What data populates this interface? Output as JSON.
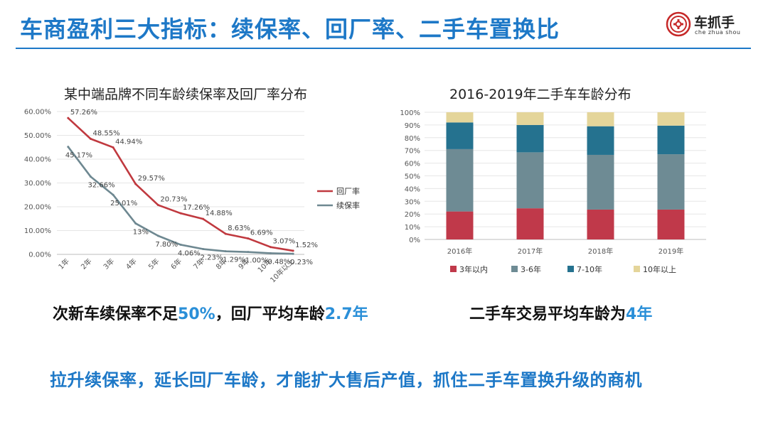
{
  "slide": {
    "title": "车商盈利三大指标：续保率、回厂率、二手车置换比",
    "logo": {
      "text": "车抓手",
      "subtext": "che zhua shou"
    },
    "note_left": {
      "prefix": "次新车续保率不足",
      "hl1": "50%",
      "mid": "，回厂平均车龄",
      "hl2": "2.7年"
    },
    "note_right": {
      "prefix": "二手车交易平均车龄为",
      "hl": "4年"
    },
    "bottom": "拉升续保率，延长回厂车龄，才能扩大售后产值，抓住二手车置换升级的商机"
  },
  "colors": {
    "accent": "#1d78c7",
    "highlight": "#2a8fd8",
    "line_return": "#c0393f",
    "line_renewal": "#6e8891",
    "bar_3": "#c0394a",
    "bar_3_6": "#6e8b94",
    "bar_7_10": "#25728f",
    "bar_10p": "#e4d59a"
  },
  "chart_data": [
    {
      "type": "line",
      "title": "某中端品牌不同车龄续保率及回厂率分布",
      "categories": [
        "1年",
        "2年",
        "3年",
        "4年",
        "5年",
        "6年",
        "7年",
        "8年",
        "9年",
        "10年",
        "10年以上"
      ],
      "series": [
        {
          "name": "回厂率",
          "values": [
            57.26,
            48.55,
            44.94,
            29.57,
            20.73,
            17.26,
            14.88,
            8.63,
            6.69,
            3.07,
            1.52
          ],
          "labels": [
            "57.26%",
            "48.55%",
            "44.94%",
            "29.57%",
            "20.73%",
            "17.26%",
            "14.88%",
            "8.63%",
            "6.69%",
            "3.07%",
            "1.52%"
          ]
        },
        {
          "name": "续保率",
          "values": [
            45.17,
            32.66,
            25.01,
            13,
            7.8,
            4.06,
            2.23,
            1.29,
            1.0,
            0.48,
            0.23
          ],
          "labels": [
            "45.17%",
            "32.66%",
            "25.01%",
            "13%",
            "7.80%",
            "4.06%",
            "2.23%",
            "1.29%",
            "1.00%",
            "0.48%",
            "0.23%"
          ]
        }
      ],
      "ylim": [
        0,
        60
      ],
      "yticks": [
        "0.00%",
        "10.00%",
        "20.00%",
        "30.00%",
        "40.00%",
        "50.00%",
        "60.00%"
      ],
      "grid": true,
      "legend": "right"
    },
    {
      "type": "bar",
      "stacked": true,
      "title": "2016-2019年二手车车龄分布",
      "categories": [
        "2016年",
        "2017年",
        "2018年",
        "2019年"
      ],
      "series": [
        {
          "name": "3年以内",
          "values": [
            22,
            24.5,
            23.5,
            23.5
          ]
        },
        {
          "name": "3-6年",
          "values": [
            49,
            44,
            43,
            43.5
          ]
        },
        {
          "name": "7-10年",
          "values": [
            21,
            21.5,
            22.5,
            22.5
          ]
        },
        {
          "name": "10年以上",
          "values": [
            8,
            10,
            11,
            10.5
          ]
        }
      ],
      "ylim": [
        0,
        100
      ],
      "yticks": [
        "0%",
        "10%",
        "20%",
        "30%",
        "40%",
        "50%",
        "60%",
        "70%",
        "80%",
        "90%",
        "100%"
      ],
      "grid": true,
      "legend": "bottom"
    }
  ]
}
